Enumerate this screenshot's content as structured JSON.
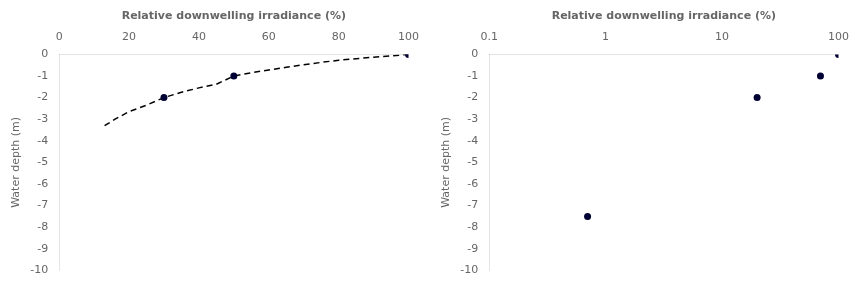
{
  "chart_data": [
    {
      "type": "scatter",
      "xlabel": "Relative downwelling irradiance (%)",
      "ylabel": "Water depth (m)",
      "xlim": [
        0,
        100
      ],
      "xticks": [
        0,
        20,
        40,
        60,
        80,
        100
      ],
      "ylim": [
        -10,
        0
      ],
      "yticks": [
        0,
        -1,
        -2,
        -3,
        -4,
        -5,
        -6,
        -7,
        -8,
        -9,
        -10
      ],
      "grid": false,
      "series": [
        {
          "type": "line",
          "color": "#000000",
          "line_style": "dashed",
          "x": [
            13,
            16,
            20,
            25,
            30,
            35,
            40,
            45,
            50,
            55,
            60,
            65,
            70,
            75,
            80,
            85,
            90,
            95,
            100
          ],
          "values": [
            -3.3,
            -3.0,
            -2.65,
            -2.35,
            -2.0,
            -1.75,
            -1.55,
            -1.38,
            -1.0,
            -0.85,
            -0.72,
            -0.6,
            -0.48,
            -0.37,
            -0.27,
            -0.2,
            -0.13,
            -0.07,
            0.0
          ]
        },
        {
          "type": "scatter",
          "color": "#000033",
          "marker": "circle",
          "x": [
            100,
            50,
            30
          ],
          "values": [
            0,
            -1,
            -2
          ]
        }
      ]
    },
    {
      "type": "scatter",
      "xlabel": "Relative downwelling irradiance (%)",
      "ylabel": "Water depth (m)",
      "log": "x",
      "xlim": [
        0.1,
        100
      ],
      "xticks": [
        0.1,
        1,
        10,
        100
      ],
      "ylim": [
        -10,
        0
      ],
      "yticks": [
        0,
        -1,
        -2,
        -3,
        -4,
        -5,
        -6,
        -7,
        -8,
        -9,
        -10
      ],
      "grid": false,
      "series": [
        {
          "type": "scatter",
          "color": "#000033",
          "marker": "circle",
          "x": [
            100,
            70,
            20,
            0.7
          ],
          "values": [
            0,
            -1,
            -2,
            -7.5
          ]
        }
      ]
    }
  ]
}
